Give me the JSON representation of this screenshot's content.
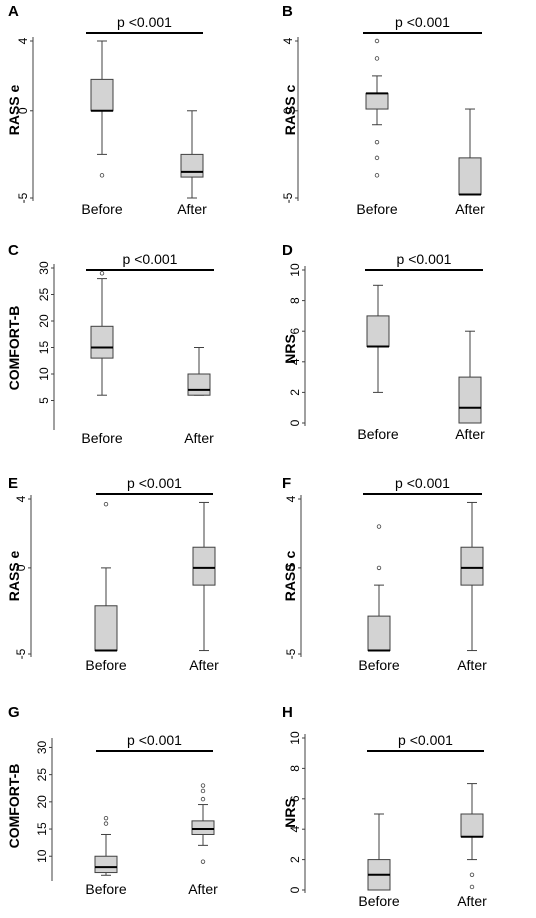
{
  "colors": {
    "box_fill": "#d3d3d3",
    "stroke": "#404040",
    "sigbar": "#000000",
    "text": "#000000"
  },
  "chart_data": [
    {
      "type": "box",
      "panel_label": "A",
      "ylabel": "RASS e",
      "categories": [
        "Before",
        "After"
      ],
      "ylim": [
        -5,
        4
      ],
      "yticks": [
        "4",
        "0",
        "-5"
      ],
      "sig_label": "p <0.001",
      "boxes": [
        {
          "min": -2.5,
          "q1": 0,
          "median": 0,
          "q3": 1.8,
          "max": 4,
          "outliers": [
            -3.7
          ]
        },
        {
          "min": -5,
          "q1": -3.8,
          "median": -3.5,
          "q3": -2.5,
          "max": 0,
          "outliers": []
        }
      ]
    },
    {
      "type": "box",
      "panel_label": "B",
      "ylabel": "RASS c",
      "categories": [
        "Before",
        "After"
      ],
      "ylim": [
        -5,
        4
      ],
      "yticks": [
        "4",
        "0",
        "-5"
      ],
      "sig_label": "p <0.001",
      "boxes": [
        {
          "min": -0.8,
          "q1": 0.1,
          "median": 1,
          "q3": 1,
          "max": 2,
          "outliers": [
            4,
            3,
            -1.8,
            -2.7,
            -3.7
          ]
        },
        {
          "min": -4.8,
          "q1": -4.8,
          "median": -4.8,
          "q3": -2.7,
          "max": 0.1,
          "outliers": []
        }
      ]
    },
    {
      "type": "box",
      "panel_label": "C",
      "ylabel": "COMFORT-B",
      "categories": [
        "Before",
        "After"
      ],
      "ylim": [
        0,
        30
      ],
      "yticks": [
        "5",
        "10",
        "15",
        "20",
        "25",
        "30"
      ],
      "sig_label": "p <0.001",
      "boxes": [
        {
          "min": 6,
          "q1": 13,
          "median": 15,
          "q3": 19,
          "max": 28,
          "outliers": [
            29
          ]
        },
        {
          "min": 6,
          "q1": 6,
          "median": 7,
          "q3": 10,
          "max": 15,
          "outliers": []
        }
      ]
    },
    {
      "type": "box",
      "panel_label": "D",
      "ylabel": "NRS",
      "categories": [
        "Before",
        "After"
      ],
      "ylim": [
        0,
        10
      ],
      "yticks": [
        "0",
        "2",
        "4",
        "6",
        "8",
        "10"
      ],
      "sig_label": "p <0.001",
      "boxes": [
        {
          "min": 2,
          "q1": 5,
          "median": 5,
          "q3": 7,
          "max": 9,
          "outliers": []
        },
        {
          "min": 0,
          "q1": 0,
          "median": 1,
          "q3": 3,
          "max": 6,
          "outliers": []
        }
      ]
    },
    {
      "type": "box",
      "panel_label": "E",
      "ylabel": "RASS e",
      "categories": [
        "Before",
        "After"
      ],
      "ylim": [
        -5,
        4
      ],
      "yticks": [
        "4",
        "0",
        "-5"
      ],
      "sig_label": "p <0.001",
      "boxes": [
        {
          "min": -4.8,
          "q1": -4.8,
          "median": -4.8,
          "q3": -2.2,
          "max": 0,
          "outliers": [
            3.7
          ]
        },
        {
          "min": -4.8,
          "q1": -1,
          "median": 0,
          "q3": 1.2,
          "max": 3.8,
          "outliers": []
        }
      ]
    },
    {
      "type": "box",
      "panel_label": "F",
      "ylabel": "RASS c",
      "categories": [
        "Before",
        "After"
      ],
      "ylim": [
        -5,
        4
      ],
      "yticks": [
        "4",
        "0",
        "-5"
      ],
      "sig_label": "p <0.001",
      "boxes": [
        {
          "min": -4.8,
          "q1": -4.8,
          "median": -4.8,
          "q3": -2.8,
          "max": -1,
          "outliers": [
            2.4,
            0
          ]
        },
        {
          "min": -4.8,
          "q1": -1,
          "median": 0,
          "q3": 1.2,
          "max": 3.8,
          "outliers": []
        }
      ]
    },
    {
      "type": "box",
      "panel_label": "G",
      "ylabel": "COMFORT-B",
      "categories": [
        "Before",
        "After"
      ],
      "ylim": [
        6,
        31
      ],
      "yticks": [
        "10",
        "15",
        "20",
        "25",
        "30"
      ],
      "sig_label": "p <0.001",
      "boxes": [
        {
          "min": 6.5,
          "q1": 7,
          "median": 8,
          "q3": 10,
          "max": 14,
          "outliers": [
            16,
            17
          ]
        },
        {
          "min": 12,
          "q1": 14,
          "median": 15,
          "q3": 16.5,
          "max": 19.5,
          "outliers": [
            9,
            20.5,
            22,
            23
          ]
        }
      ]
    },
    {
      "type": "box",
      "panel_label": "H",
      "ylabel": "NRS",
      "categories": [
        "Before",
        "After"
      ],
      "ylim": [
        0,
        10
      ],
      "yticks": [
        "0",
        "2",
        "4",
        "6",
        "8",
        "10"
      ],
      "sig_label": "p <0.001",
      "boxes": [
        {
          "min": 0,
          "q1": 0,
          "median": 1,
          "q3": 2,
          "max": 5,
          "outliers": []
        },
        {
          "min": 2,
          "q1": 3.5,
          "median": 3.5,
          "q3": 5,
          "max": 7,
          "outliers": [
            1,
            0.2
          ]
        }
      ]
    }
  ]
}
